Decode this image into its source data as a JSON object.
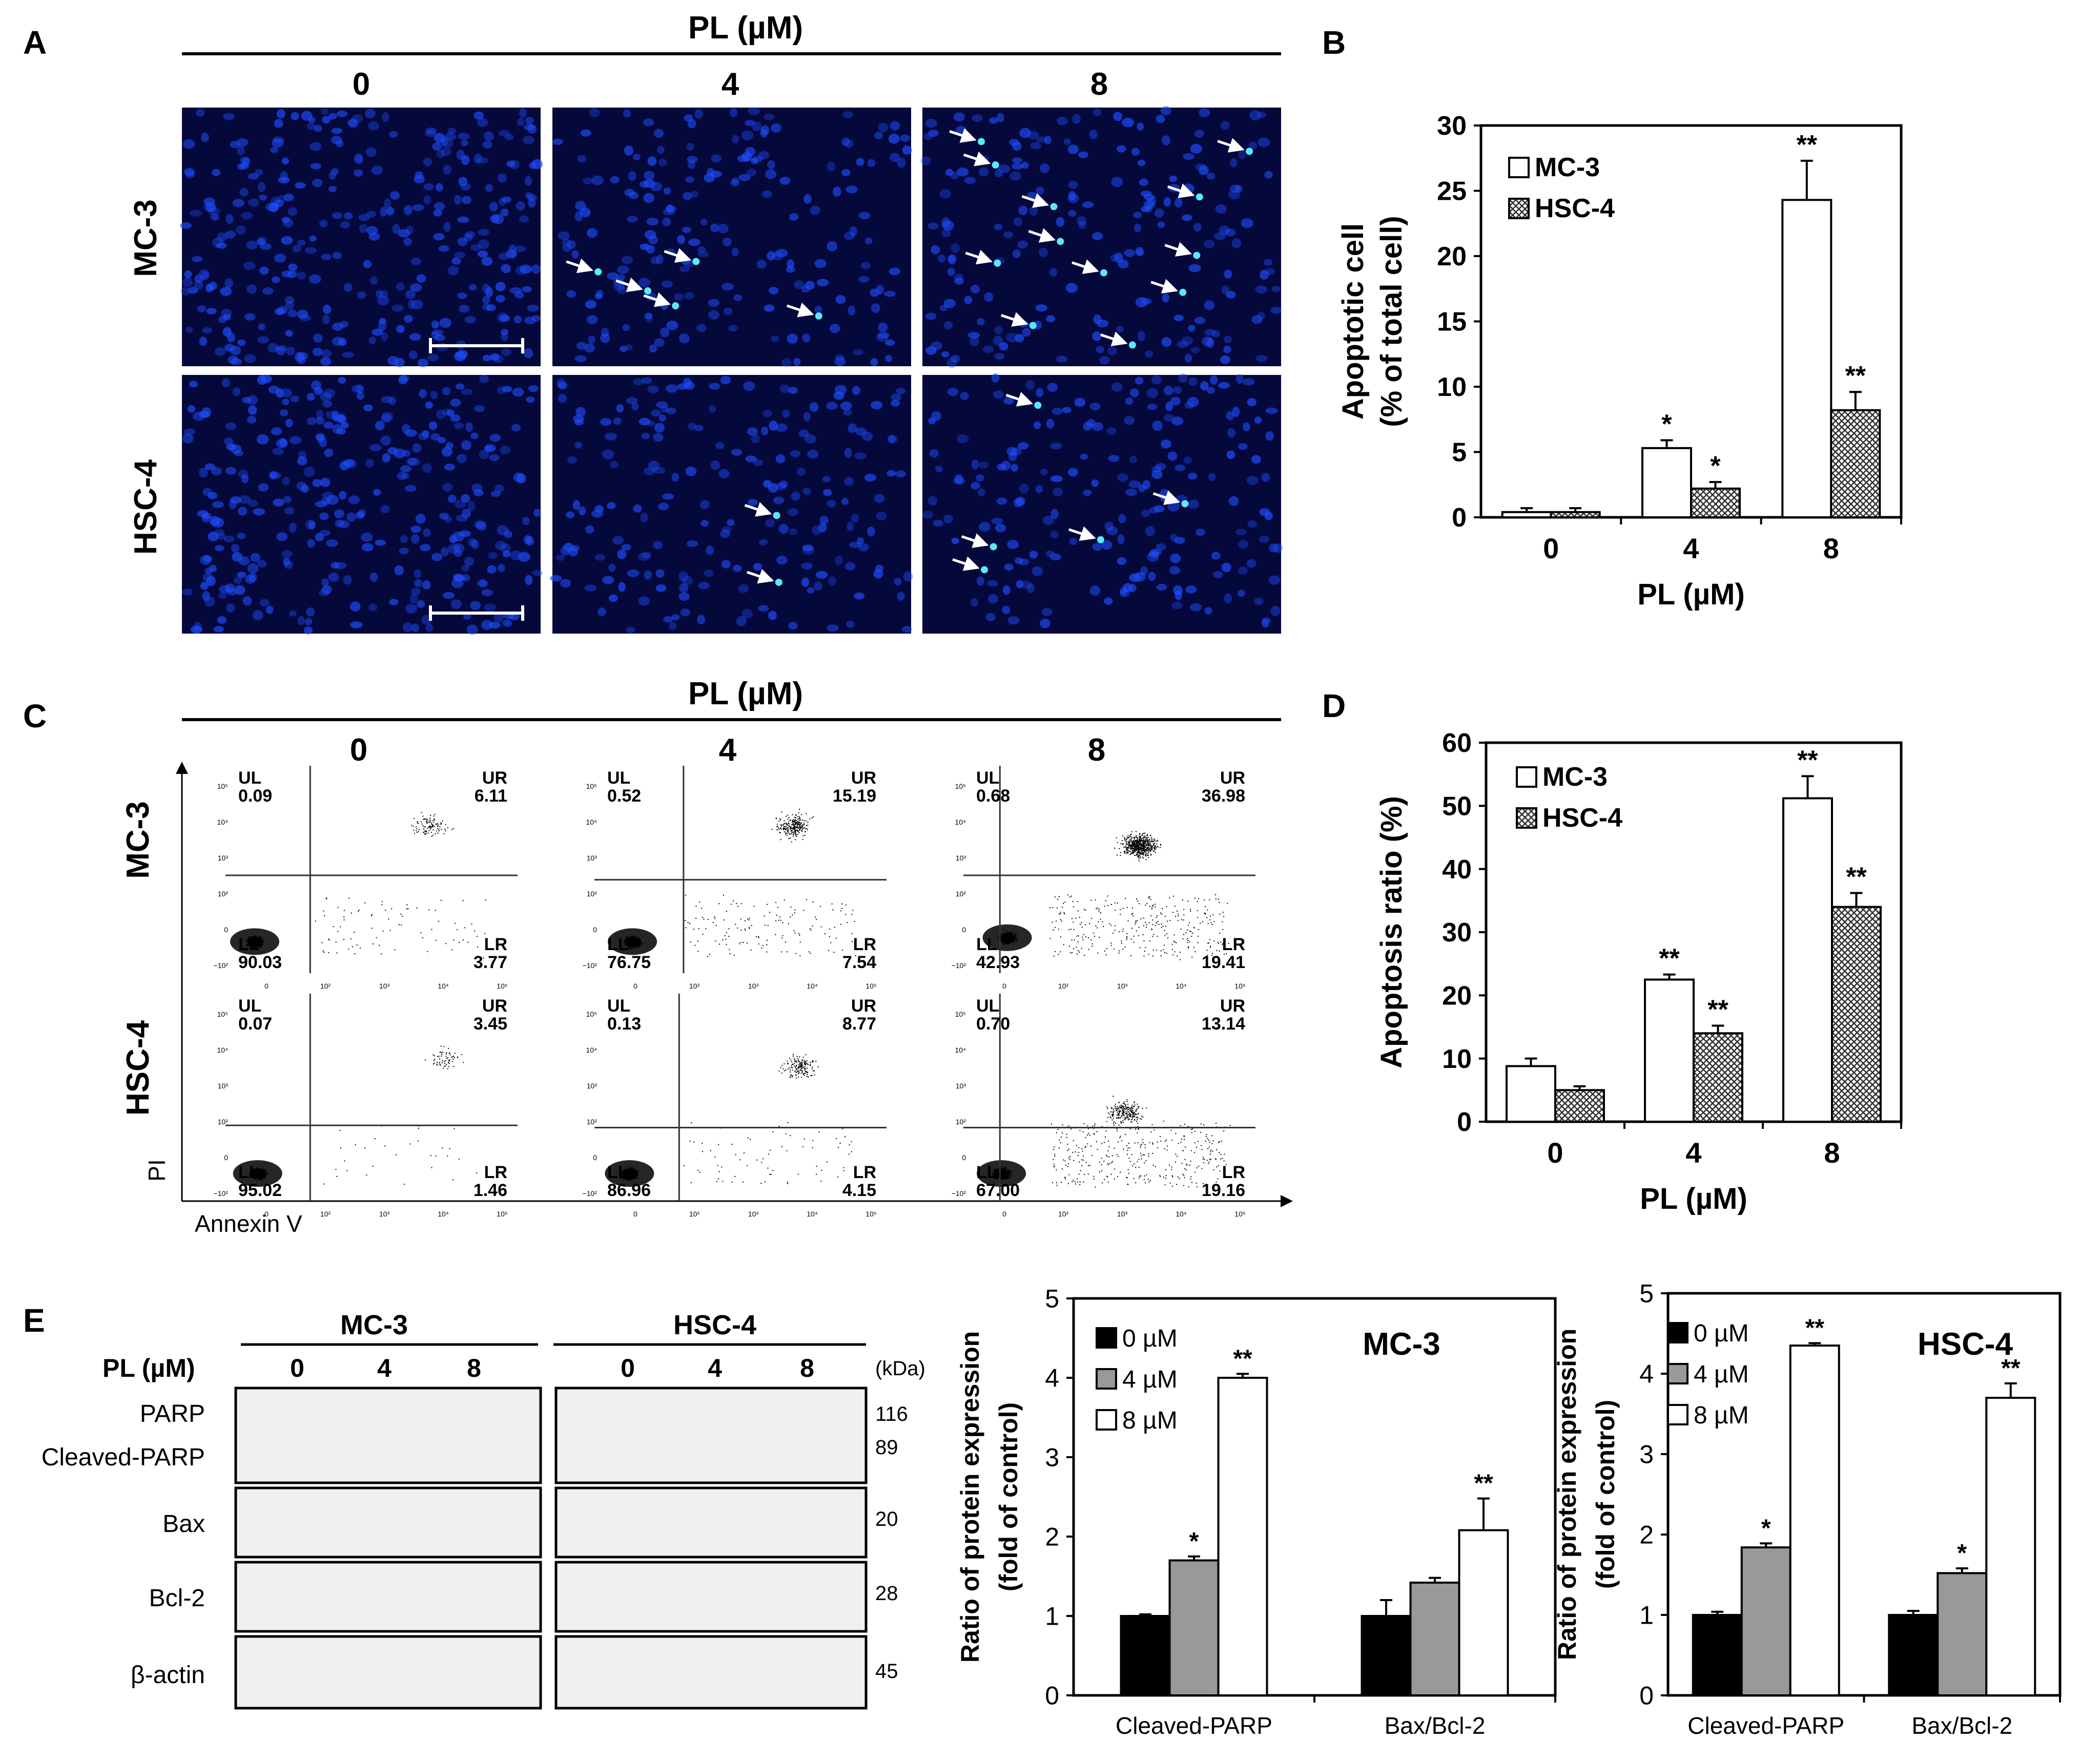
{
  "panel_letters": {
    "a": "A",
    "b": "B",
    "c": "C",
    "d": "D",
    "e": "E"
  },
  "panel_a": {
    "title": "PL (µM)",
    "doses": [
      "0",
      "4",
      "8"
    ],
    "rows": [
      "MC-3",
      "HSC-4"
    ]
  },
  "panel_c": {
    "title": "PL (µM)",
    "doses": [
      "0",
      "4",
      "8"
    ],
    "rows": [
      "MC-3",
      "HSC-4"
    ],
    "x_axis_label": "Annexin V",
    "y_axis_label": "PI",
    "x_ticks": [
      "0",
      "10²",
      "10³",
      "10⁴",
      "10⁵"
    ],
    "y_ticks": [
      "−10²",
      "0",
      "10²",
      "10³",
      "10⁴",
      "10⁵"
    ],
    "quadrant_names": {
      "ul": "UL",
      "ur": "UR",
      "ll": "LL",
      "lr": "LR"
    },
    "plots": [
      {
        "row": "MC-3",
        "dose": "0",
        "ul": "0.09",
        "ur": "6.11",
        "ll": "90.03",
        "lr": "3.77"
      },
      {
        "row": "MC-3",
        "dose": "4",
        "ul": "0.52",
        "ur": "15.19",
        "ll": "76.75",
        "lr": "7.54"
      },
      {
        "row": "MC-3",
        "dose": "8",
        "ul": "0.68",
        "ur": "36.98",
        "ll": "42.93",
        "lr": "19.41"
      },
      {
        "row": "HSC-4",
        "dose": "0",
        "ul": "0.07",
        "ur": "3.45",
        "ll": "95.02",
        "lr": "1.46"
      },
      {
        "row": "HSC-4",
        "dose": "4",
        "ul": "0.13",
        "ur": "8.77",
        "ll": "86.96",
        "lr": "4.15"
      },
      {
        "row": "HSC-4",
        "dose": "8",
        "ul": "0.70",
        "ur": "13.14",
        "ll": "67.00",
        "lr": "19.16"
      }
    ]
  },
  "panel_e_blot": {
    "cell_lines": [
      "MC-3",
      "HSC-4"
    ],
    "dose_label": "PL (µM)",
    "doses": [
      "0",
      "4",
      "8"
    ],
    "kda_label": "(kDa)",
    "protein_labels": [
      "PARP",
      "Cleaved-PARP",
      "Bax",
      "Bcl-2",
      "β-actin"
    ],
    "mw_markers": [
      "116",
      "89",
      "20",
      "28",
      "45"
    ]
  },
  "chart_data": [
    {
      "id": "B",
      "type": "bar",
      "title": "",
      "xlabel": "PL (µM)",
      "ylabel_line1": "Apoptotic cell",
      "ylabel_line2": "(% of total cell)",
      "categories": [
        "0",
        "4",
        "8"
      ],
      "ylim": [
        0,
        30
      ],
      "yticks": [
        "0",
        "5",
        "10",
        "15",
        "20",
        "25",
        "30"
      ],
      "series": [
        {
          "name": "MC-3",
          "values": [
            0.4,
            5.3,
            24.3
          ],
          "errors": [
            0.3,
            0.6,
            3.0
          ],
          "sig": [
            "",
            "*",
            "**"
          ]
        },
        {
          "name": "HSC-4",
          "values": [
            0.4,
            2.2,
            8.2
          ],
          "errors": [
            0.3,
            0.5,
            1.4
          ],
          "sig": [
            "",
            "*",
            "**"
          ]
        }
      ]
    },
    {
      "id": "D",
      "type": "bar",
      "title": "",
      "xlabel": "PL (µM)",
      "ylabel_line1": "Apoptosis ratio (%)",
      "ylabel_line2": "",
      "categories": [
        "0",
        "4",
        "8"
      ],
      "ylim": [
        0,
        60
      ],
      "yticks": [
        "0",
        "10",
        "20",
        "30",
        "40",
        "50",
        "60"
      ],
      "series": [
        {
          "name": "MC-3",
          "values": [
            8.8,
            22.5,
            51.2
          ],
          "errors": [
            1.2,
            0.8,
            3.5
          ],
          "sig": [
            "",
            "**",
            "**"
          ]
        },
        {
          "name": "HSC-4",
          "values": [
            5.0,
            14.0,
            34.0
          ],
          "errors": [
            0.6,
            1.2,
            2.2
          ],
          "sig": [
            "",
            "**",
            "**"
          ]
        }
      ]
    },
    {
      "id": "E-MC-3",
      "type": "bar",
      "title": "MC-3",
      "xlabel": "",
      "ylabel_line1": "Ratio of protein expression",
      "ylabel_line2": "(fold of control)",
      "categories": [
        "Cleaved-PARP",
        "Bax/Bcl-2"
      ],
      "ylim": [
        0,
        5
      ],
      "yticks": [
        "0",
        "1",
        "2",
        "3",
        "4",
        "5"
      ],
      "series": [
        {
          "name": "0 µM",
          "values": [
            1.0,
            1.0
          ],
          "errors": [
            0.02,
            0.2
          ],
          "sig": [
            "",
            ""
          ]
        },
        {
          "name": "4 µM",
          "values": [
            1.7,
            1.42
          ],
          "errors": [
            0.05,
            0.06
          ],
          "sig": [
            "*",
            ""
          ]
        },
        {
          "name": "8 µM",
          "values": [
            4.0,
            2.08
          ],
          "errors": [
            0.05,
            0.4
          ],
          "sig": [
            "**",
            "**"
          ]
        }
      ]
    },
    {
      "id": "E-HSC-4",
      "type": "bar",
      "title": "HSC-4",
      "xlabel": "",
      "ylabel_line1": "Ratio of protein expression",
      "ylabel_line2": "(fold of control)",
      "categories": [
        "Cleaved-PARP",
        "Bax/Bcl-2"
      ],
      "ylim": [
        0,
        5
      ],
      "yticks": [
        "0",
        "1",
        "2",
        "3",
        "4",
        "5"
      ],
      "series": [
        {
          "name": "0 µM",
          "values": [
            1.0,
            1.0
          ],
          "errors": [
            0.04,
            0.05
          ],
          "sig": [
            "",
            ""
          ]
        },
        {
          "name": "4 µM",
          "values": [
            1.84,
            1.52
          ],
          "errors": [
            0.05,
            0.06
          ],
          "sig": [
            "*",
            "*"
          ]
        },
        {
          "name": "8 µM",
          "values": [
            4.35,
            3.7
          ],
          "errors": [
            0.03,
            0.18
          ],
          "sig": [
            "**",
            "**"
          ]
        }
      ]
    }
  ],
  "colors": {
    "fluor_bg": "#05083a",
    "fluor_cell": "#1f4dff",
    "fluor_bright": "#5ae8ff"
  }
}
